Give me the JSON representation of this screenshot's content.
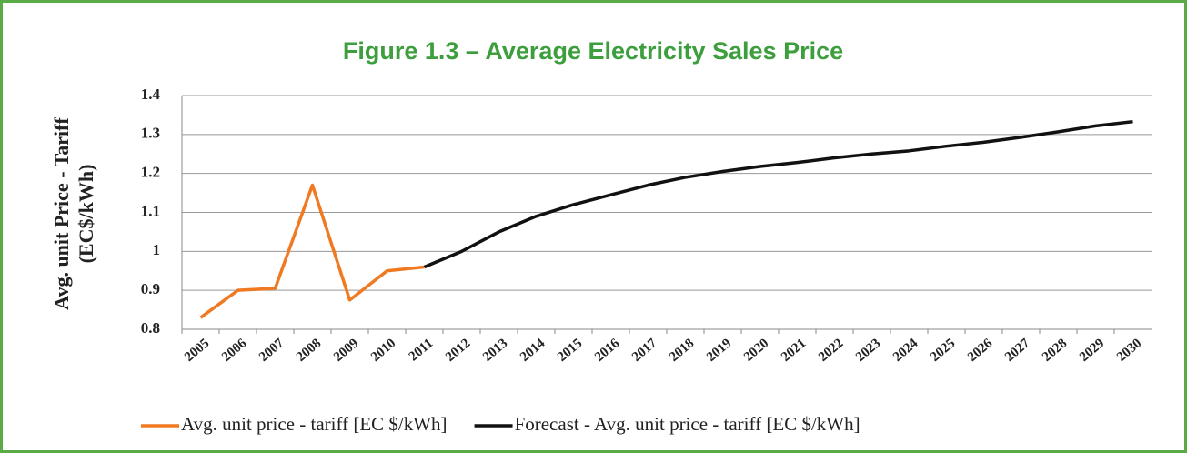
{
  "chart_data": {
    "type": "line",
    "title": "Figure 1.3 – Average Electricity Sales Price",
    "ylabel": [
      "Avg. unit Price - Tariff",
      "(EC$/kWh)"
    ],
    "categories": [
      "2005",
      "2006",
      "2007",
      "2008",
      "2009",
      "2010",
      "2011",
      "2012",
      "2013",
      "2014",
      "2015",
      "2016",
      "2017",
      "2018",
      "2019",
      "2020",
      "2021",
      "2022",
      "2023",
      "2024",
      "2025",
      "2026",
      "2027",
      "2028",
      "2029",
      "2030"
    ],
    "series": [
      {
        "name": "Avg. unit price - tariff [EC $/kWh]",
        "color": "#f07a22",
        "values": [
          0.83,
          0.9,
          0.905,
          1.17,
          0.875,
          0.95,
          0.96,
          null,
          null,
          null,
          null,
          null,
          null,
          null,
          null,
          null,
          null,
          null,
          null,
          null,
          null,
          null,
          null,
          null,
          null,
          null
        ]
      },
      {
        "name": "Forecast - Avg. unit price - tariff [EC $/kWh]",
        "color": "#111111",
        "values": [
          null,
          null,
          null,
          null,
          null,
          null,
          0.96,
          1.0,
          1.05,
          1.09,
          1.12,
          1.145,
          1.17,
          1.19,
          1.205,
          1.218,
          1.228,
          1.24,
          1.25,
          1.258,
          1.27,
          1.28,
          1.293,
          1.307,
          1.322,
          1.333
        ]
      }
    ],
    "ylim": [
      0.8,
      1.4
    ],
    "yticks": [
      0.8,
      0.9,
      1,
      1.1,
      1.2,
      1.3,
      1.4
    ],
    "grid": true,
    "legend": "bottom"
  }
}
